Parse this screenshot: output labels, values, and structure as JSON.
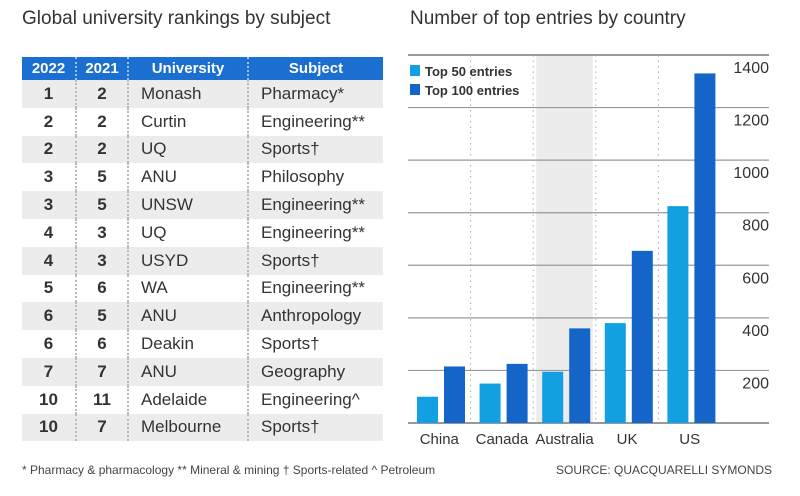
{
  "table": {
    "title": "Global university rankings by subject",
    "headers": [
      "2022",
      "2021",
      "University",
      "Subject"
    ],
    "rows": [
      [
        "1",
        "2",
        "Monash",
        "Pharmacy*"
      ],
      [
        "2",
        "2",
        "Curtin",
        "Engineering**"
      ],
      [
        "2",
        "2",
        "UQ",
        "Sports†"
      ],
      [
        "3",
        "5",
        "ANU",
        "Philosophy"
      ],
      [
        "3",
        "5",
        "UNSW",
        "Engineering**"
      ],
      [
        "4",
        "3",
        "UQ",
        "Engineering**"
      ],
      [
        "4",
        "3",
        "USYD",
        "Sports†"
      ],
      [
        "5",
        "6",
        "WA",
        "Engineering**"
      ],
      [
        "6",
        "5",
        "ANU",
        "Anthropology"
      ],
      [
        "6",
        "6",
        "Deakin",
        "Sports†"
      ],
      [
        "7",
        "7",
        "ANU",
        "Geography"
      ],
      [
        "10",
        "11",
        "Adelaide",
        "Engineering^"
      ],
      [
        "10",
        "7",
        "Melbourne",
        "Sports†"
      ]
    ]
  },
  "chart_data": {
    "type": "bar",
    "title": "Number of top entries by country",
    "categories": [
      "China",
      "Canada",
      "Australia",
      "UK",
      "US"
    ],
    "series": [
      {
        "name": "Top 50 entries",
        "values": [
          100,
          150,
          195,
          380,
          825
        ],
        "color": "#12a0e3"
      },
      {
        "name": "Top 100 entries",
        "values": [
          215,
          225,
          360,
          655,
          1330
        ],
        "color": "#1565c8"
      }
    ],
    "yticks": [
      "200",
      "400",
      "600",
      "800",
      "1000",
      "1200",
      "1400"
    ],
    "ylim": [
      0,
      1400
    ],
    "highlight_category": "Australia",
    "legend": "top-left",
    "grid": true
  },
  "footer": {
    "notes": "* Pharmacy & pharmacology ** Mineral & mining † Sports-related ^ Petroleum",
    "source": "SOURCE: QUACQUARELLI SYMONDS"
  }
}
